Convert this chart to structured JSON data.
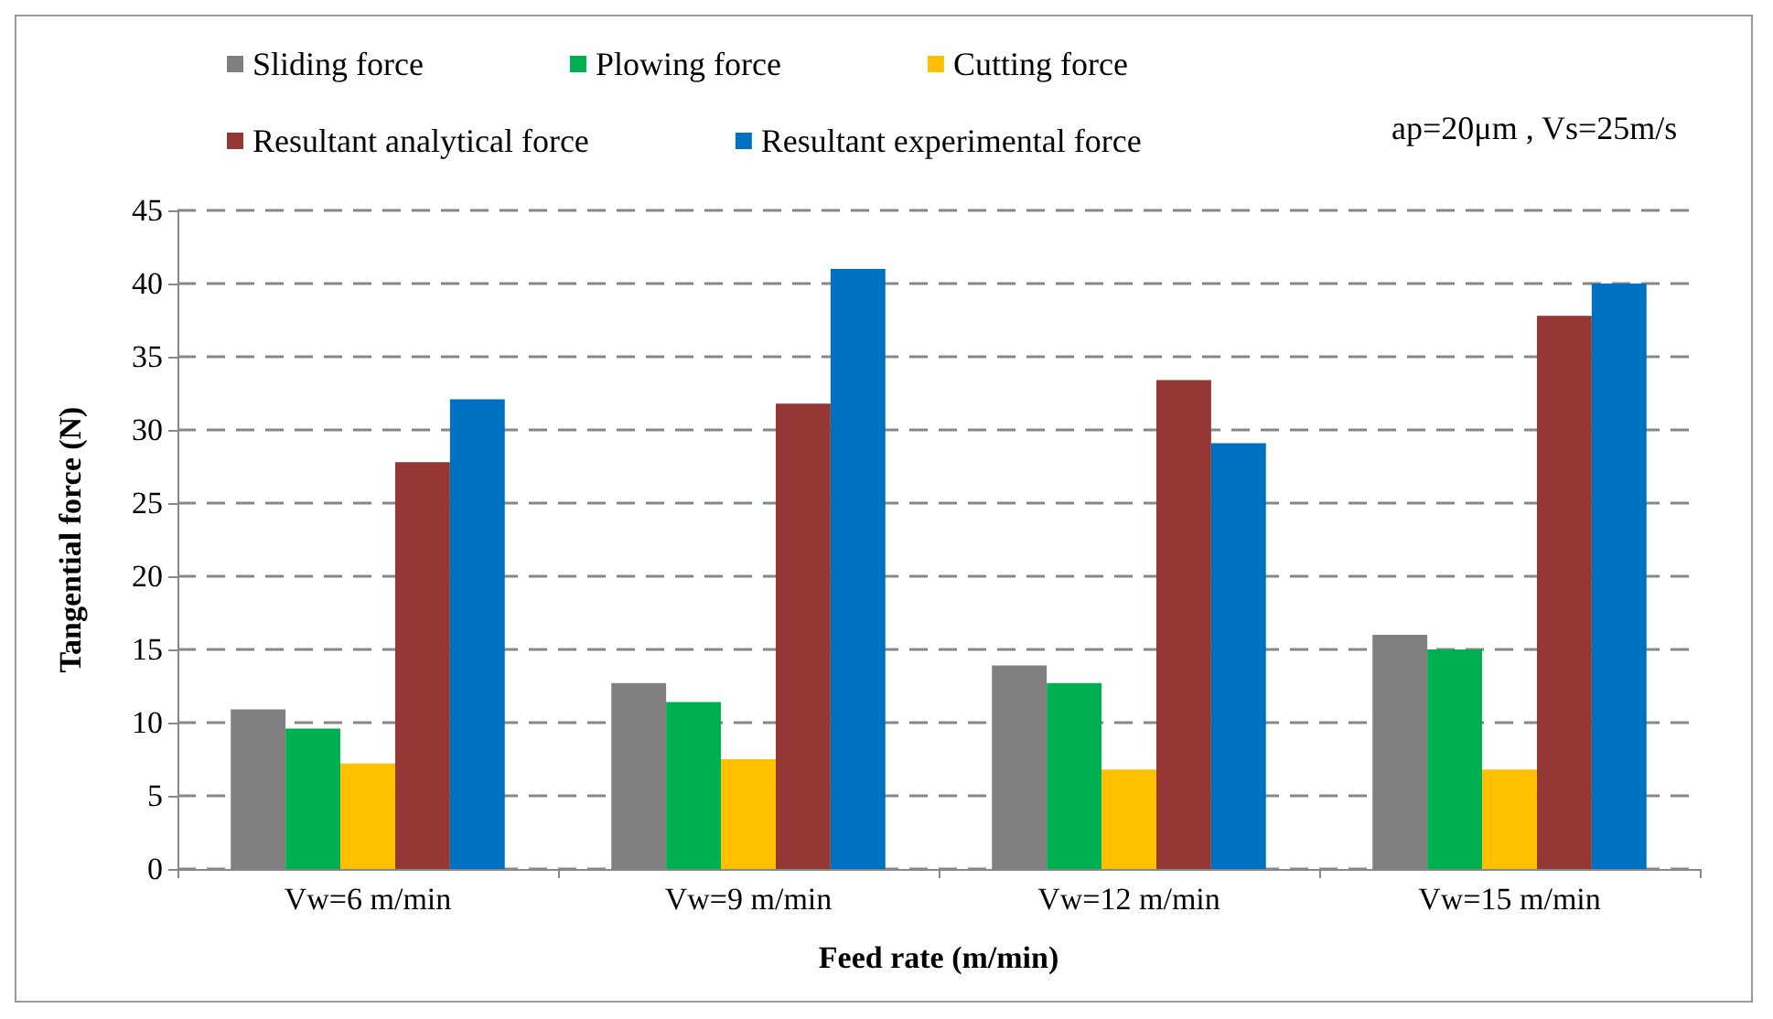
{
  "chart_data": {
    "type": "bar",
    "xlabel": "Feed rate (m/min)",
    "ylabel": "Tangential force (N)",
    "categories": [
      "Vw=6 m/min",
      "Vw=9 m/min",
      "Vw=12 m/min",
      "Vw=15 m/min"
    ],
    "series": [
      {
        "name": "Sliding force",
        "color": "#808080",
        "values": [
          10.9,
          12.7,
          13.9,
          16.0
        ]
      },
      {
        "name": "Plowing force",
        "color": "#00b050",
        "values": [
          9.6,
          11.4,
          12.7,
          15.0
        ]
      },
      {
        "name": "Cutting force",
        "color": "#ffc000",
        "values": [
          7.2,
          7.5,
          6.8,
          6.8
        ]
      },
      {
        "name": "Resultant analytical force",
        "color": "#953735",
        "values": [
          27.8,
          31.8,
          33.4,
          37.8
        ]
      },
      {
        "name": "Resultant experimental force",
        "color": "#0070c0",
        "values": [
          32.1,
          41.0,
          29.1,
          40.0
        ]
      }
    ],
    "ylim": [
      0,
      45
    ],
    "yticks": [
      0,
      5,
      10,
      15,
      20,
      25,
      30,
      35,
      40,
      45
    ],
    "grid": "y",
    "legend": "top",
    "annotations": [
      "ap=20μm , Vs=25m/s"
    ]
  }
}
